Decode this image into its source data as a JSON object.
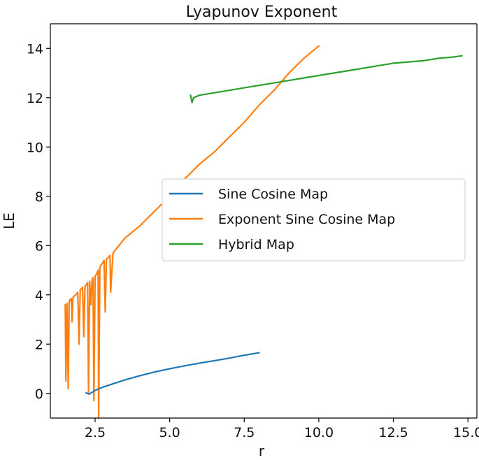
{
  "chart_data": {
    "type": "line",
    "title": "Lyapunov Exponent",
    "xlabel": "r",
    "ylabel": "LE",
    "xlim": [
      1.0,
      15.3
    ],
    "ylim": [
      -1.0,
      15.0
    ],
    "xticks": [
      2.5,
      5.0,
      7.5,
      10.0,
      12.5,
      15.0
    ],
    "xtick_labels": [
      "2.5",
      "5.0",
      "7.5",
      "10.0",
      "12.5",
      "15.0"
    ],
    "yticks": [
      0,
      2,
      4,
      6,
      8,
      10,
      12,
      14
    ],
    "ytick_labels": [
      "0",
      "2",
      "4",
      "6",
      "8",
      "10",
      "12",
      "14"
    ],
    "grid": false,
    "legend_position": "center-right",
    "series": [
      {
        "name": "Sine Cosine Map",
        "color": "#1f77b4",
        "x": [
          2.2,
          2.3,
          2.5,
          2.75,
          3.0,
          3.5,
          4.0,
          4.5,
          5.0,
          5.5,
          6.0,
          6.5,
          7.0,
          7.5,
          8.0
        ],
        "y": [
          0.02,
          -0.03,
          0.12,
          0.25,
          0.35,
          0.55,
          0.72,
          0.87,
          1.0,
          1.12,
          1.23,
          1.33,
          1.43,
          1.55,
          1.65
        ]
      },
      {
        "name": "Exponent Sine Cosine Map",
        "color": "#ff7f0e",
        "x": [
          1.5,
          1.52,
          1.56,
          1.6,
          1.63,
          1.66,
          1.7,
          1.73,
          1.76,
          1.8,
          1.85,
          1.88,
          1.92,
          1.96,
          2.0,
          2.04,
          2.08,
          2.12,
          2.16,
          2.2,
          2.25,
          2.28,
          2.32,
          2.36,
          2.4,
          2.43,
          2.46,
          2.5,
          2.55,
          2.6,
          2.62,
          2.66,
          2.7,
          2.75,
          2.8,
          2.84,
          2.88,
          2.93,
          2.96,
          3.0,
          3.02,
          3.1,
          3.3,
          3.5,
          3.8,
          4.0,
          4.5,
          5.0,
          5.5,
          6.0,
          6.5,
          7.0,
          7.5,
          8.0,
          8.5,
          9.0,
          9.5,
          10.0
        ],
        "y": [
          3.6,
          0.5,
          3.65,
          0.2,
          3.7,
          3.8,
          3.85,
          2.9,
          3.9,
          3.95,
          4.0,
          4.05,
          4.1,
          2.0,
          4.2,
          4.25,
          4.3,
          2.3,
          4.35,
          4.4,
          4.5,
          0.0,
          4.55,
          3.6,
          4.6,
          4.7,
          -0.3,
          4.75,
          4.85,
          5.0,
          -1.0,
          5.1,
          5.2,
          5.3,
          5.4,
          3.3,
          5.45,
          5.5,
          5.55,
          5.6,
          4.1,
          5.7,
          6.0,
          6.3,
          6.6,
          6.8,
          7.4,
          8.0,
          8.7,
          9.3,
          9.8,
          10.4,
          11.0,
          11.7,
          12.3,
          13.0,
          13.6,
          14.1
        ]
      },
      {
        "name": "Hybrid Map",
        "color": "#2ca02c",
        "x": [
          5.7,
          5.75,
          5.8,
          6.0,
          6.5,
          7.0,
          7.5,
          8.0,
          8.5,
          9.0,
          9.5,
          10.0,
          10.5,
          11.0,
          11.5,
          12.0,
          12.5,
          13.0,
          13.5,
          14.0,
          14.5,
          14.8
        ],
        "y": [
          12.1,
          11.8,
          12.0,
          12.1,
          12.2,
          12.3,
          12.4,
          12.5,
          12.6,
          12.7,
          12.8,
          12.9,
          13.0,
          13.1,
          13.2,
          13.3,
          13.4,
          13.45,
          13.5,
          13.6,
          13.65,
          13.7
        ]
      }
    ]
  }
}
